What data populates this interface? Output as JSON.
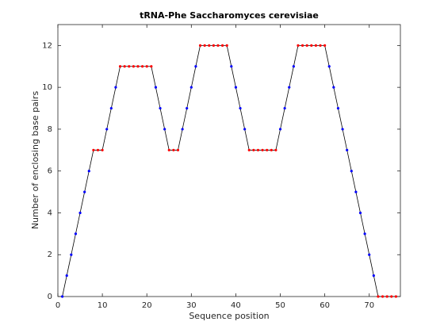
{
  "chart_data": {
    "type": "line",
    "title": "tRNA-Phe Saccharomyces cerevisiae",
    "xlabel": "Sequence position",
    "ylabel": "Number of enclosing base pairs",
    "x": [
      1,
      2,
      3,
      4,
      5,
      6,
      7,
      8,
      9,
      10,
      11,
      12,
      13,
      14,
      15,
      16,
      17,
      18,
      19,
      20,
      21,
      22,
      23,
      24,
      25,
      26,
      27,
      28,
      29,
      30,
      31,
      32,
      33,
      34,
      35,
      36,
      37,
      38,
      39,
      40,
      41,
      42,
      43,
      44,
      45,
      46,
      47,
      48,
      49,
      50,
      51,
      52,
      53,
      54,
      55,
      56,
      57,
      58,
      59,
      60,
      61,
      62,
      63,
      64,
      65,
      66,
      67,
      68,
      69,
      70,
      71,
      72,
      73,
      74,
      75,
      76
    ],
    "values": [
      0,
      1,
      2,
      3,
      4,
      5,
      6,
      7,
      7,
      7,
      8,
      9,
      10,
      11,
      11,
      11,
      11,
      11,
      11,
      11,
      11,
      10,
      9,
      8,
      7,
      7,
      7,
      8,
      9,
      10,
      11,
      12,
      12,
      12,
      12,
      12,
      12,
      12,
      11,
      10,
      9,
      8,
      7,
      7,
      7,
      7,
      7,
      7,
      7,
      8,
      9,
      10,
      11,
      12,
      12,
      12,
      12,
      12,
      12,
      12,
      11,
      10,
      9,
      8,
      7,
      6,
      5,
      4,
      3,
      2,
      1,
      0,
      0,
      0,
      0,
      0
    ],
    "line_color": "#000000",
    "marker_color": "#0000ff",
    "plateau_color": "#ff0000",
    "xlim": [
      0,
      77
    ],
    "xticks": [
      0,
      10,
      20,
      30,
      40,
      50,
      60,
      70
    ],
    "ylim": [
      0,
      13
    ],
    "yticks": [
      0,
      2,
      4,
      6,
      8,
      10,
      12
    ]
  }
}
